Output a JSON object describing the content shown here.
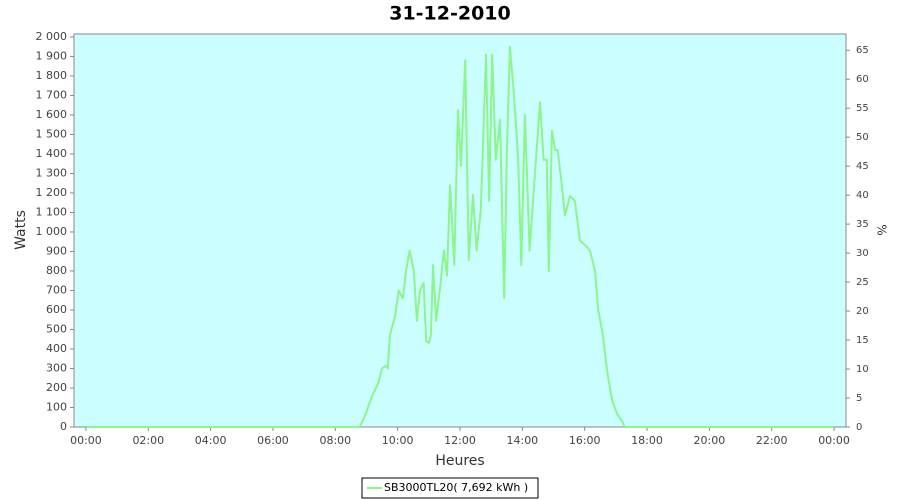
{
  "chart_data": {
    "type": "line",
    "title": "31-12-2010",
    "x_label": "Heures",
    "y_label": "Watts",
    "y2_label": "%",
    "x": [
      0,
      527,
      537,
      551,
      562,
      570,
      577,
      581,
      585,
      595,
      602,
      610,
      616,
      623,
      631,
      637,
      643,
      650,
      655,
      660,
      664,
      668,
      674,
      682,
      689,
      695,
      701,
      709,
      716,
      722,
      730,
      737,
      745,
      752,
      760,
      770,
      776,
      782,
      789,
      797,
      805,
      810,
      816,
      824,
      832,
      838,
      845,
      854,
      864,
      874,
      881,
      887,
      891,
      897,
      903,
      908,
      916,
      922,
      932,
      941,
      951,
      962,
      970,
      980,
      986,
      995,
      1003,
      1013,
      1022,
      1032,
      1037,
      1440
    ],
    "series": [
      {
        "name": "SB3000TL20( 7,692 kWh )",
        "color": "#8cf58c",
        "values": [
          0,
          0,
          57,
          160,
          220,
          300,
          314,
          300,
          470,
          570,
          700,
          660,
          800,
          905,
          800,
          545,
          700,
          740,
          440,
          430,
          470,
          830,
          545,
          725,
          905,
          775,
          1240,
          830,
          1625,
          1340,
          1880,
          855,
          1190,
          905,
          1110,
          1910,
          1160,
          1910,
          1370,
          1575,
          660,
          1390,
          1950,
          1700,
          1370,
          830,
          1600,
          905,
          1290,
          1665,
          1370,
          1370,
          800,
          1520,
          1420,
          1420,
          1240,
          1085,
          1185,
          1160,
          955,
          930,
          905,
          800,
          600,
          470,
          290,
          135,
          70,
          30,
          0,
          0
        ]
      }
    ],
    "xlim": [
      -23,
      1463
    ],
    "xticks": [
      {
        "value": 0,
        "label": "00:00"
      },
      {
        "value": 120,
        "label": "02:00"
      },
      {
        "value": 240,
        "label": "04:00"
      },
      {
        "value": 360,
        "label": "06:00"
      },
      {
        "value": 480,
        "label": "08:00"
      },
      {
        "value": 600,
        "label": "10:00"
      },
      {
        "value": 720,
        "label": "12:00"
      },
      {
        "value": 840,
        "label": "14:00"
      },
      {
        "value": 960,
        "label": "16:00"
      },
      {
        "value": 1080,
        "label": "18:00"
      },
      {
        "value": 1200,
        "label": "20:00"
      },
      {
        "value": 1320,
        "label": "22:00"
      },
      {
        "value": 1440,
        "label": "00:00"
      }
    ],
    "ylim": [
      0,
      2015
    ],
    "yticks": [
      0,
      100,
      200,
      300,
      400,
      500,
      600,
      700,
      800,
      900,
      {
        "value": 1000,
        "label": "1 000"
      },
      {
        "value": 1100,
        "label": "1 100"
      },
      {
        "value": 1200,
        "label": "1 200"
      },
      {
        "value": 1300,
        "label": "1 300"
      },
      {
        "value": 1400,
        "label": "1 400"
      },
      {
        "value": 1500,
        "label": "1 500"
      },
      {
        "value": 1600,
        "label": "1 600"
      },
      {
        "value": 1700,
        "label": "1 700"
      },
      {
        "value": 1800,
        "label": "1 800"
      },
      {
        "value": 1900,
        "label": "1 900"
      },
      {
        "value": 2000,
        "label": "2 000"
      }
    ],
    "y2lim": [
      0,
      67.8
    ],
    "y2ticks": [
      0,
      5,
      10,
      15,
      20,
      25,
      30,
      35,
      40,
      45,
      50,
      55,
      60,
      65
    ],
    "plot_background": "#ccffff",
    "grid": false,
    "legend": "bottom"
  }
}
